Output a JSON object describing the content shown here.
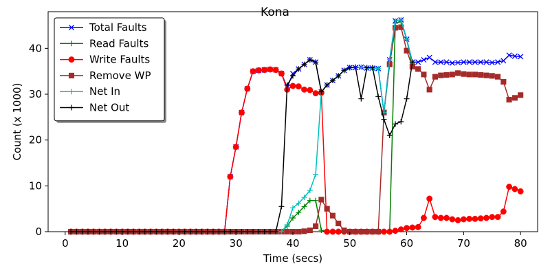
{
  "chart_data": {
    "type": "line",
    "title": "Kona",
    "xlabel": "Time (secs)",
    "ylabel": "Count (x 1000)",
    "xlim": [
      -3,
      83
    ],
    "ylim": [
      0,
      48
    ],
    "xticks": [
      0,
      10,
      20,
      30,
      40,
      50,
      60,
      70,
      80
    ],
    "yticks": [
      0,
      10,
      20,
      30,
      40
    ],
    "grid": false,
    "legend_position": "top-left",
    "series": [
      {
        "name": "Total Faults",
        "color": "#0000ff",
        "marker": "x",
        "x": [
          1,
          2,
          3,
          4,
          5,
          6,
          7,
          8,
          9,
          10,
          11,
          12,
          13,
          14,
          15,
          16,
          17,
          18,
          19,
          20,
          21,
          22,
          23,
          24,
          25,
          26,
          27,
          28,
          29,
          30,
          31,
          32,
          33,
          34,
          35,
          36,
          37,
          38,
          39,
          40,
          41,
          42,
          43,
          44,
          45,
          46,
          47,
          48,
          49,
          50,
          51,
          52,
          53,
          54,
          55,
          56,
          57,
          58,
          59,
          60,
          61,
          62,
          63,
          64,
          65,
          66,
          67,
          68,
          69,
          70,
          71,
          72,
          73,
          74,
          75,
          76,
          77,
          78,
          79,
          80
        ],
        "y": [
          0,
          0,
          0,
          0,
          0,
          0,
          0,
          0,
          0,
          0,
          0,
          0,
          0,
          0,
          0,
          0,
          0,
          0,
          0,
          0,
          0,
          0,
          0,
          0,
          0,
          0,
          0,
          0,
          12,
          18.5,
          26,
          31.2,
          35,
          35.2,
          35.3,
          35.4,
          35.3,
          34.5,
          31.5,
          34.5,
          35.5,
          36.5,
          37.5,
          37,
          30.5,
          32,
          33,
          34,
          35.2,
          35.8,
          35.8,
          35.9,
          35.7,
          35.7,
          35.6,
          26,
          37.5,
          46,
          46.2,
          42,
          37,
          37,
          37.5,
          38,
          37,
          37,
          37,
          36.8,
          36.9,
          37,
          37,
          37,
          37,
          37,
          36.9,
          37,
          37.3,
          38.5,
          38.3,
          38.2
        ]
      },
      {
        "name": "Read Faults",
        "color": "#008000",
        "marker": "plus",
        "x": [
          1,
          2,
          3,
          4,
          5,
          6,
          7,
          8,
          9,
          10,
          11,
          12,
          13,
          14,
          15,
          16,
          17,
          18,
          19,
          20,
          21,
          22,
          23,
          24,
          25,
          26,
          27,
          28,
          29,
          30,
          31,
          32,
          33,
          34,
          35,
          36,
          37,
          38,
          39,
          40,
          41,
          42,
          43,
          44,
          45,
          46,
          47,
          48,
          49,
          50,
          51,
          52,
          53,
          54,
          55,
          56,
          57,
          58,
          59,
          60,
          61
        ],
        "y": [
          0,
          0,
          0,
          0,
          0,
          0,
          0,
          0,
          0,
          0,
          0,
          0,
          0,
          0,
          0,
          0,
          0,
          0,
          0,
          0,
          0,
          0,
          0,
          0,
          0,
          0,
          0,
          0,
          0,
          0,
          0,
          0,
          0,
          0,
          0,
          0,
          0,
          0,
          1.2,
          3,
          4.2,
          5.5,
          6.8,
          6.8,
          0.3,
          0,
          0,
          0,
          0,
          0,
          0,
          0,
          0,
          0,
          0,
          0,
          0,
          45.5,
          45.8,
          42,
          36
        ]
      },
      {
        "name": "Write Faults",
        "color": "#ff0000",
        "marker": "circle",
        "x": [
          1,
          2,
          3,
          4,
          5,
          6,
          7,
          8,
          9,
          10,
          11,
          12,
          13,
          14,
          15,
          16,
          17,
          18,
          19,
          20,
          21,
          22,
          23,
          24,
          25,
          26,
          27,
          28,
          29,
          30,
          31,
          32,
          33,
          34,
          35,
          36,
          37,
          38,
          39,
          40,
          41,
          42,
          43,
          44,
          45,
          46,
          47,
          48,
          49,
          50,
          51,
          52,
          53,
          54,
          55,
          56,
          57,
          58,
          59,
          60,
          61,
          62,
          63,
          64,
          65,
          66,
          67,
          68,
          69,
          70,
          71,
          72,
          73,
          74,
          75,
          76,
          77,
          78,
          79,
          80
        ],
        "y": [
          0,
          0,
          0,
          0,
          0,
          0,
          0,
          0,
          0,
          0,
          0,
          0,
          0,
          0,
          0,
          0,
          0,
          0,
          0,
          0,
          0,
          0,
          0,
          0,
          0,
          0,
          0,
          0,
          12,
          18.5,
          26,
          31.2,
          35,
          35.2,
          35.3,
          35.4,
          35.3,
          34.5,
          31,
          31.8,
          31.7,
          31,
          30.9,
          30.2,
          30.3,
          0,
          0,
          0,
          0,
          0,
          0,
          0,
          0,
          0,
          0,
          0,
          0,
          0.2,
          0.5,
          0.8,
          0.9,
          1,
          3,
          7.2,
          3.2,
          3,
          3,
          2.7,
          2.5,
          2.7,
          2.8,
          2.8,
          2.9,
          3,
          3.2,
          3.2,
          4.4,
          9.8,
          9.3,
          8.8
        ]
      },
      {
        "name": "Remove WP",
        "color": "#a52a2a",
        "marker": "square",
        "x": [
          1,
          2,
          3,
          4,
          5,
          6,
          7,
          8,
          9,
          10,
          11,
          12,
          13,
          14,
          15,
          16,
          17,
          18,
          19,
          20,
          21,
          22,
          23,
          24,
          25,
          26,
          27,
          28,
          29,
          30,
          31,
          32,
          33,
          34,
          35,
          36,
          37,
          38,
          39,
          40,
          41,
          42,
          43,
          44,
          45,
          46,
          47,
          48,
          49,
          50,
          51,
          52,
          53,
          54,
          55,
          56,
          57,
          58,
          59,
          60,
          61,
          62,
          63,
          64,
          65,
          66,
          67,
          68,
          69,
          70,
          71,
          72,
          73,
          74,
          75,
          76,
          77,
          78,
          79,
          80
        ],
        "y": [
          0,
          0,
          0,
          0,
          0,
          0,
          0,
          0,
          0,
          0,
          0,
          0,
          0,
          0,
          0,
          0,
          0,
          0,
          0,
          0,
          0,
          0,
          0,
          0,
          0,
          0,
          0,
          0,
          0,
          0,
          0,
          0,
          0,
          0,
          0,
          0,
          0,
          0,
          0,
          0,
          0,
          0.1,
          0.3,
          1.2,
          7,
          5,
          3.5,
          1.8,
          0.3,
          0,
          0,
          0,
          0,
          0,
          0,
          26,
          36.5,
          44.5,
          44.6,
          39.5,
          36,
          35.5,
          34.3,
          31,
          33.8,
          34.1,
          34.2,
          34.3,
          34.6,
          34.4,
          34.3,
          34.3,
          34.2,
          34.1,
          34,
          33.8,
          32.7,
          28.8,
          29.2,
          29.8
        ]
      },
      {
        "name": "Net In",
        "color": "#00bfbf",
        "marker": "plus",
        "x": [
          1,
          2,
          3,
          4,
          5,
          6,
          7,
          8,
          9,
          10,
          11,
          12,
          13,
          14,
          15,
          16,
          17,
          18,
          19,
          20,
          21,
          22,
          23,
          24,
          25,
          26,
          27,
          28,
          29,
          30,
          31,
          32,
          33,
          34,
          35,
          36,
          37,
          38,
          39,
          40,
          41,
          42,
          43,
          44,
          45,
          46,
          47,
          48,
          49,
          50,
          51,
          52,
          53,
          54,
          55,
          56,
          57,
          58,
          59,
          60,
          61
        ],
        "y": [
          0,
          0,
          0,
          0,
          0,
          0,
          0,
          0,
          0,
          0,
          0,
          0,
          0,
          0,
          0,
          0,
          0,
          0,
          0,
          0,
          0,
          0,
          0,
          0,
          0,
          0,
          0,
          0,
          0,
          0,
          0,
          0,
          0,
          0,
          0,
          0,
          0,
          0,
          1.5,
          5.2,
          6.2,
          7.5,
          9,
          12.5,
          30.5,
          32,
          33,
          34,
          35.2,
          35.8,
          35.8,
          35.9,
          35.7,
          35.7,
          35.6,
          26,
          37.5,
          46,
          46.2,
          42,
          36.8
        ]
      },
      {
        "name": "Net Out",
        "color": "#000000",
        "marker": "plus",
        "x": [
          1,
          2,
          3,
          4,
          5,
          6,
          7,
          8,
          9,
          10,
          11,
          12,
          13,
          14,
          15,
          16,
          17,
          18,
          19,
          20,
          21,
          22,
          23,
          24,
          25,
          26,
          27,
          28,
          29,
          30,
          31,
          32,
          33,
          34,
          35,
          36,
          37,
          38,
          39,
          40,
          41,
          42,
          43,
          44,
          45,
          46,
          47,
          48,
          49,
          50,
          51,
          52,
          53,
          54,
          55,
          56,
          57,
          58,
          59,
          60,
          61
        ],
        "y": [
          0,
          0,
          0,
          0,
          0,
          0,
          0,
          0,
          0,
          0,
          0,
          0,
          0,
          0,
          0,
          0,
          0,
          0,
          0,
          0,
          0,
          0,
          0,
          0,
          0,
          0,
          0,
          0,
          0,
          0,
          0,
          0,
          0,
          0,
          0,
          0,
          0,
          5.5,
          32,
          34,
          35.5,
          36.5,
          37.5,
          37,
          30.5,
          32,
          33,
          34,
          35.2,
          35.8,
          35.9,
          29,
          35.8,
          35.8,
          29.5,
          24.5,
          21,
          23.5,
          24,
          29,
          37
        ]
      }
    ]
  }
}
